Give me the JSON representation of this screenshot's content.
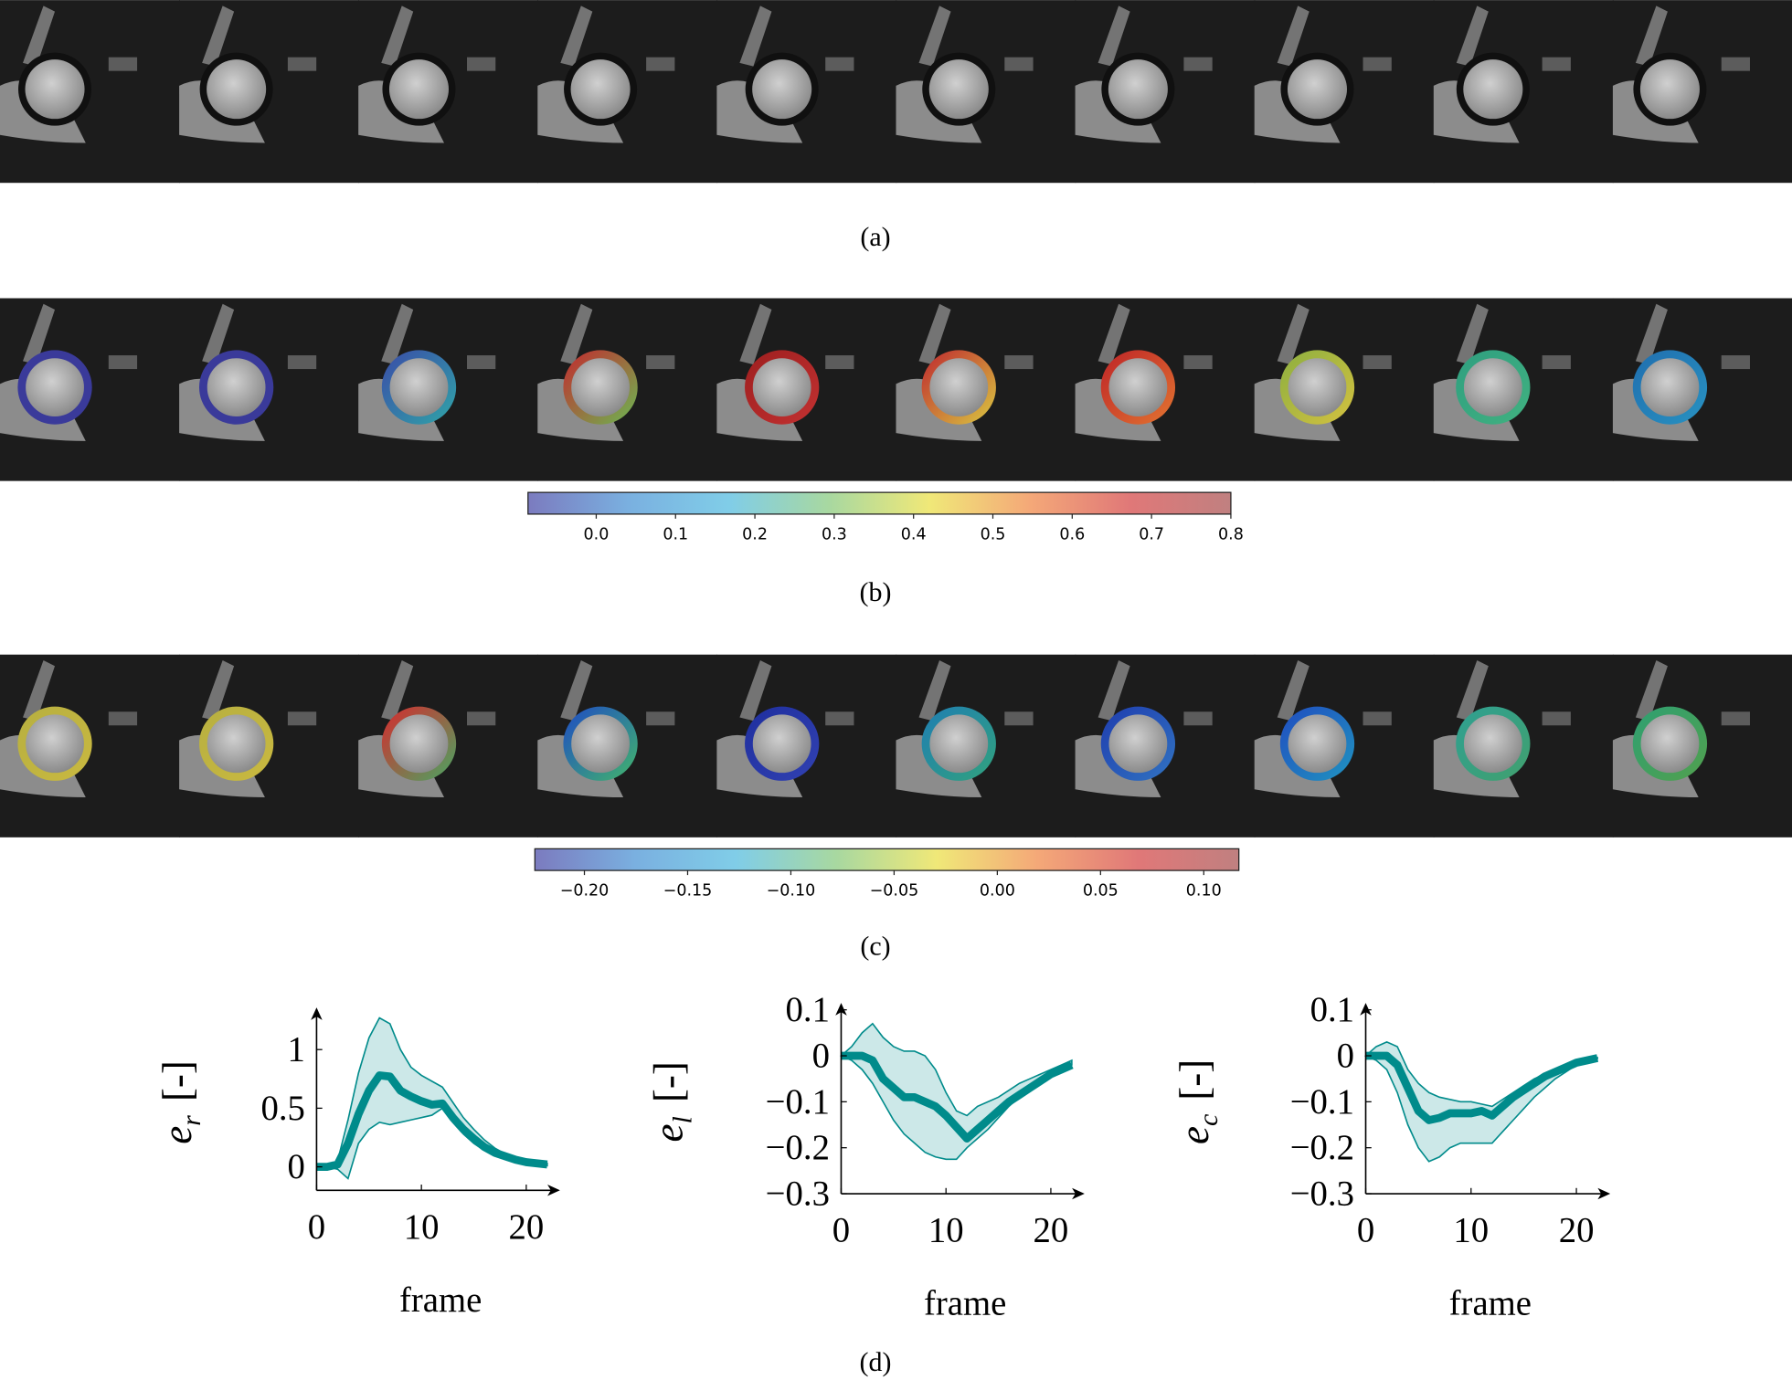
{
  "captions": [
    "(a)",
    "(b)",
    "(c)",
    "(d)"
  ],
  "colorbars": [
    {
      "lim": [
        -0.086,
        0.8
      ],
      "colormap": [
        "#7b7bbf",
        "#7ab0e0",
        "#80cde8",
        "#a8d8a0",
        "#f0e878",
        "#f4a878",
        "#e07878",
        "#c08080"
      ],
      "ticks": [
        {
          "value": 0,
          "label": "0.0"
        },
        0.1,
        0.2,
        0.3,
        0.4,
        0.5,
        0.6,
        0.7,
        0.8
      ]
    },
    {
      "lim": [
        -0.224,
        0.117
      ],
      "colormap": [
        "#7b7bbf",
        "#7ab0e0",
        "#80cde8",
        "#a8d8a0",
        "#f0e878",
        "#f4a878",
        "#e07878",
        "#c08080"
      ],
      "ticks": [
        {
          "value": -0.2,
          "label": "−0.20"
        },
        {
          "value": -0.15,
          "label": "−0.15"
        },
        {
          "value": -0.1,
          "label": "−0.10"
        },
        {
          "value": -0.05,
          "label": "−0.05"
        },
        {
          "value": 0,
          "label": "0.00"
        },
        {
          "value": 0.05,
          "label": "0.05"
        },
        {
          "value": 0.1,
          "label": "0.10"
        }
      ]
    }
  ],
  "chart_data": [
    {
      "type": "line",
      "y_label": "e",
      "y_label_sub": "r",
      "y_label_unit": "[-]",
      "x_label": "frame",
      "xlim": [
        0,
        23
      ],
      "xticks": [
        0,
        10,
        20
      ],
      "ylim": [
        -0.2,
        1.3
      ],
      "yticks": [
        0,
        0.5,
        1
      ],
      "x": [
        0,
        1,
        2,
        3,
        4,
        5,
        6,
        7,
        8,
        9,
        10,
        11,
        12,
        13,
        14,
        15,
        16,
        17,
        18,
        19,
        20,
        21,
        22
      ],
      "series": [
        {
          "color": "#008b8b",
          "values": [
            0,
            0,
            0.02,
            0.2,
            0.45,
            0.65,
            0.78,
            0.77,
            0.65,
            0.6,
            0.56,
            0.53,
            0.54,
            0.42,
            0.32,
            0.24,
            0.17,
            0.12,
            0.09,
            0.06,
            0.04,
            0.03,
            0.02
          ],
          "upper": [
            0,
            0,
            0.05,
            0.4,
            0.8,
            1.1,
            1.27,
            1.22,
            1.0,
            0.85,
            0.78,
            0.73,
            0.68,
            0.55,
            0.42,
            0.32,
            0.23,
            0.16,
            0.11,
            0.08,
            0.05,
            0.04,
            0.03
          ],
          "lower": [
            0,
            0,
            -0.02,
            -0.1,
            0.2,
            0.32,
            0.38,
            0.36,
            0.38,
            0.4,
            0.42,
            0.44,
            0.5,
            0.38,
            0.28,
            0.2,
            0.14,
            0.1,
            0.07,
            0.05,
            0.03,
            0.02,
            0.01
          ]
        }
      ]
    },
    {
      "type": "line",
      "y_label": "e",
      "y_label_sub": "l",
      "y_label_unit": "[-]",
      "x_label": "frame",
      "xlim": [
        0,
        23
      ],
      "xticks": [
        0,
        10,
        20
      ],
      "ylim": [
        -0.3,
        0.1
      ],
      "yticks": [
        0.1,
        0,
        {
          "value": -0.1,
          "label": "−0.1"
        },
        {
          "value": -0.2,
          "label": "−0.2"
        },
        {
          "value": -0.3,
          "label": "−0.3"
        }
      ],
      "x": [
        0,
        1,
        2,
        3,
        4,
        5,
        6,
        7,
        8,
        9,
        10,
        11,
        12,
        13,
        14,
        15,
        16,
        17,
        18,
        19,
        20,
        21,
        22
      ],
      "series": [
        {
          "color": "#008b8b",
          "values": [
            0,
            0,
            0,
            -0.01,
            -0.05,
            -0.07,
            -0.09,
            -0.09,
            -0.1,
            -0.11,
            -0.13,
            -0.155,
            -0.18,
            -0.16,
            -0.14,
            -0.12,
            -0.1,
            -0.085,
            -0.07,
            -0.055,
            -0.04,
            -0.03,
            -0.02
          ],
          "upper": [
            0,
            0.02,
            0.05,
            0.07,
            0.04,
            0.02,
            0.01,
            0.01,
            0,
            -0.03,
            -0.08,
            -0.12,
            -0.13,
            -0.11,
            -0.1,
            -0.09,
            -0.075,
            -0.06,
            -0.05,
            -0.04,
            -0.03,
            -0.02,
            -0.01
          ],
          "lower": [
            0,
            -0.01,
            -0.03,
            -0.06,
            -0.1,
            -0.14,
            -0.17,
            -0.19,
            -0.21,
            -0.22,
            -0.225,
            -0.225,
            -0.2,
            -0.18,
            -0.16,
            -0.135,
            -0.11,
            -0.09,
            -0.075,
            -0.06,
            -0.045,
            -0.03,
            -0.02
          ]
        }
      ]
    },
    {
      "type": "line",
      "y_label": "e",
      "y_label_sub": "c",
      "y_label_unit": "[-]",
      "x_label": "frame",
      "xlim": [
        0,
        23
      ],
      "xticks": [
        0,
        10,
        20
      ],
      "ylim": [
        -0.3,
        0.1
      ],
      "yticks": [
        0.1,
        0,
        {
          "value": -0.1,
          "label": "−0.1"
        },
        {
          "value": -0.2,
          "label": "−0.2"
        },
        {
          "value": -0.3,
          "label": "−0.3"
        }
      ],
      "x": [
        0,
        1,
        2,
        3,
        4,
        5,
        6,
        7,
        8,
        9,
        10,
        11,
        12,
        13,
        14,
        15,
        16,
        17,
        18,
        19,
        20,
        21,
        22
      ],
      "series": [
        {
          "color": "#008b8b",
          "values": [
            0,
            0,
            0,
            -0.02,
            -0.07,
            -0.12,
            -0.14,
            -0.135,
            -0.125,
            -0.125,
            -0.125,
            -0.12,
            -0.13,
            -0.11,
            -0.09,
            -0.075,
            -0.06,
            -0.045,
            -0.035,
            -0.025,
            -0.015,
            -0.01,
            -0.005
          ],
          "upper": [
            0,
            0.02,
            0.03,
            0.02,
            -0.03,
            -0.06,
            -0.08,
            -0.09,
            -0.095,
            -0.1,
            -0.1,
            -0.105,
            -0.11,
            -0.095,
            -0.08,
            -0.065,
            -0.05,
            -0.04,
            -0.03,
            -0.02,
            -0.012,
            -0.008,
            -0.004
          ],
          "lower": [
            0,
            -0.01,
            -0.03,
            -0.08,
            -0.15,
            -0.2,
            -0.23,
            -0.22,
            -0.2,
            -0.19,
            -0.19,
            -0.19,
            -0.19,
            -0.165,
            -0.14,
            -0.115,
            -0.09,
            -0.07,
            -0.05,
            -0.035,
            -0.02,
            -0.012,
            -0.006
          ]
        }
      ]
    }
  ]
}
